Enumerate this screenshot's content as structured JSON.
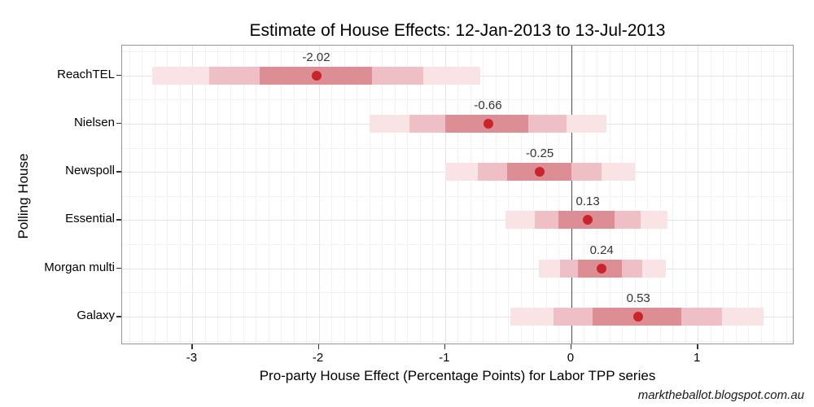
{
  "chart_data": {
    "type": "interval-dot",
    "title": "Estimate of House Effects: 12-Jan-2013 to 13-Jul-2013",
    "xlabel": "Pro-party House Effect (Percentage Points) for Labor TPP series",
    "ylabel": "Polling House",
    "watermark": "marktheballot.blogspot.com.au",
    "xlim": [
      -3.557,
      1.766
    ],
    "xticks": [
      -3,
      -2,
      -1,
      0,
      1
    ],
    "xtick_labels": [
      "-3",
      "-2",
      "-1",
      "0",
      "1"
    ],
    "zero_line": 0,
    "grid": {
      "on": true,
      "minor_step": 0.1,
      "legend": "none"
    },
    "categories": [
      "ReachTEL",
      "Nielsen",
      "Newspoll",
      "Essential",
      "Morgan multi",
      "Galaxy"
    ],
    "series": [
      {
        "house": "ReachTEL",
        "estimate": -2.02,
        "label": "-2.02",
        "inner": [
          -2.47,
          -1.58
        ],
        "middle": [
          -2.87,
          -1.17
        ],
        "outer": [
          -3.32,
          -0.72
        ]
      },
      {
        "house": "Nielsen",
        "estimate": -0.66,
        "label": "-0.66",
        "inner": [
          -1.0,
          -0.34
        ],
        "middle": [
          -1.28,
          -0.04
        ],
        "outer": [
          -1.6,
          0.28
        ]
      },
      {
        "house": "Newspoll",
        "estimate": -0.25,
        "label": "-0.25",
        "inner": [
          -0.51,
          0.0
        ],
        "middle": [
          -0.74,
          0.24
        ],
        "outer": [
          -1.0,
          0.5
        ]
      },
      {
        "house": "Essential",
        "estimate": 0.13,
        "label": "0.13",
        "inner": [
          -0.1,
          0.34
        ],
        "middle": [
          -0.29,
          0.55
        ],
        "outer": [
          -0.52,
          0.76
        ]
      },
      {
        "house": "Morgan multi",
        "estimate": 0.24,
        "label": "0.24",
        "inner": [
          0.05,
          0.4
        ],
        "middle": [
          -0.09,
          0.56
        ],
        "outer": [
          -0.26,
          0.75
        ]
      },
      {
        "house": "Galaxy",
        "estimate": 0.53,
        "label": "0.53",
        "inner": [
          0.17,
          0.87
        ],
        "middle": [
          -0.14,
          1.19
        ],
        "outer": [
          -0.48,
          1.52
        ]
      }
    ],
    "colors": {
      "point": "#c8242b",
      "band_inner": "#dd8e95",
      "band_middle": "#eec0c5",
      "band_outer": "#f9e3e5",
      "zero_line": "#4d4d4d",
      "grid_major": "#e4e4e4",
      "grid_minor": "#f1f1f1",
      "panel_border": "#969696",
      "tick": "#333333",
      "point_label": "#333333"
    }
  }
}
